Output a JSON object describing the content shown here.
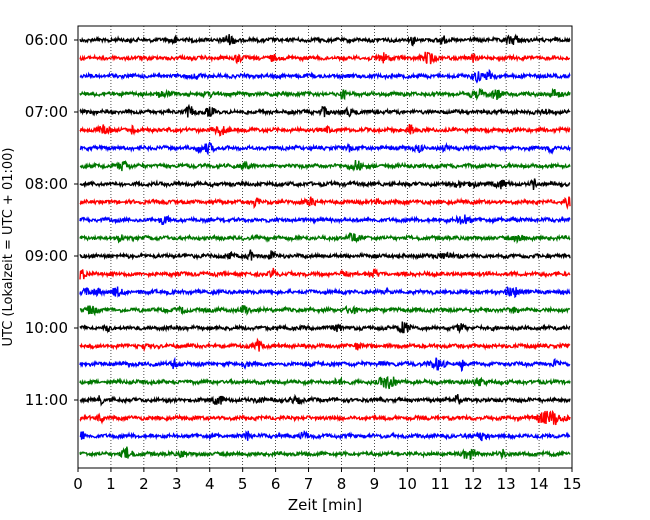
{
  "chart_data": {
    "type": "line",
    "title": "",
    "xlabel": "Zeit  [min]",
    "ylabel": "UTC (Lokalzeit = UTC + 01:00)",
    "xlim": [
      0,
      15
    ],
    "x_ticks": [
      "0",
      "1",
      "2",
      "3",
      "4",
      "5",
      "6",
      "7",
      "8",
      "9",
      "10",
      "11",
      "12",
      "13",
      "14",
      "15"
    ],
    "y_tick_labels": [
      "06:00",
      "07:00",
      "08:00",
      "09:00",
      "10:00",
      "11:00"
    ],
    "grid": "vertical dotted lines at each minute",
    "trace_interval_minutes": 15,
    "first_trace_start": "06:00",
    "color_cycle": [
      "#000000",
      "#ff0000",
      "#0000ff",
      "#007700"
    ],
    "traces": [
      {
        "start": "06:00"
      },
      {
        "start": "06:15"
      },
      {
        "start": "06:30"
      },
      {
        "start": "06:45"
      },
      {
        "start": "07:00"
      },
      {
        "start": "07:15"
      },
      {
        "start": "07:30"
      },
      {
        "start": "07:45"
      },
      {
        "start": "08:00"
      },
      {
        "start": "08:15"
      },
      {
        "start": "08:30"
      },
      {
        "start": "08:45"
      },
      {
        "start": "09:00"
      },
      {
        "start": "09:15"
      },
      {
        "start": "09:30"
      },
      {
        "start": "09:45"
      },
      {
        "start": "10:00"
      },
      {
        "start": "10:15"
      },
      {
        "start": "10:30"
      },
      {
        "start": "10:45"
      },
      {
        "start": "11:00"
      },
      {
        "start": "11:15"
      },
      {
        "start": "11:30"
      },
      {
        "start": "11:45"
      }
    ]
  }
}
